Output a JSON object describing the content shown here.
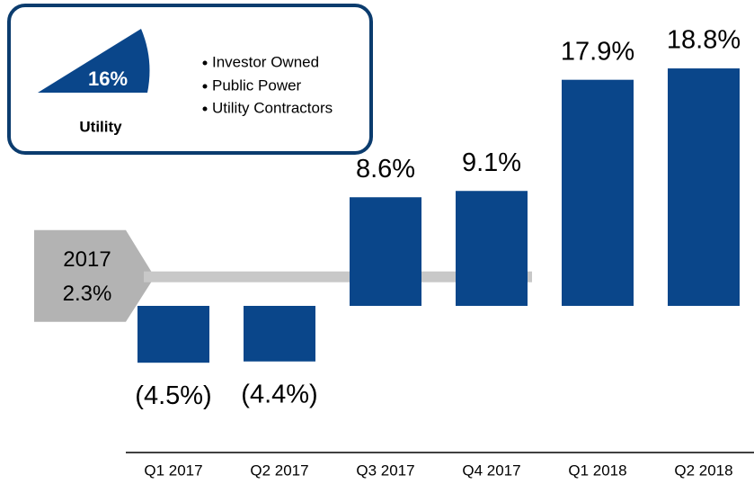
{
  "chart_data": {
    "type": "bar",
    "categories": [
      "Q1 2017",
      "Q2 2017",
      "Q3 2017",
      "Q4 2017",
      "Q1 2018",
      "Q2 2018"
    ],
    "values": [
      -4.5,
      -4.4,
      8.6,
      9.1,
      17.9,
      18.8
    ],
    "value_labels": [
      "(4.5%)",
      "(4.4%)",
      "8.6%",
      "9.1%",
      "17.9%",
      "18.8%"
    ],
    "color": "#0a468a",
    "average": {
      "label": "2017",
      "value": 2.3,
      "value_label": "2.3%"
    }
  },
  "inset": {
    "wedge_label": "16%",
    "title": "Utility",
    "bullets": [
      "Investor Owned",
      "Public Power",
      "Utility Contractors"
    ]
  }
}
